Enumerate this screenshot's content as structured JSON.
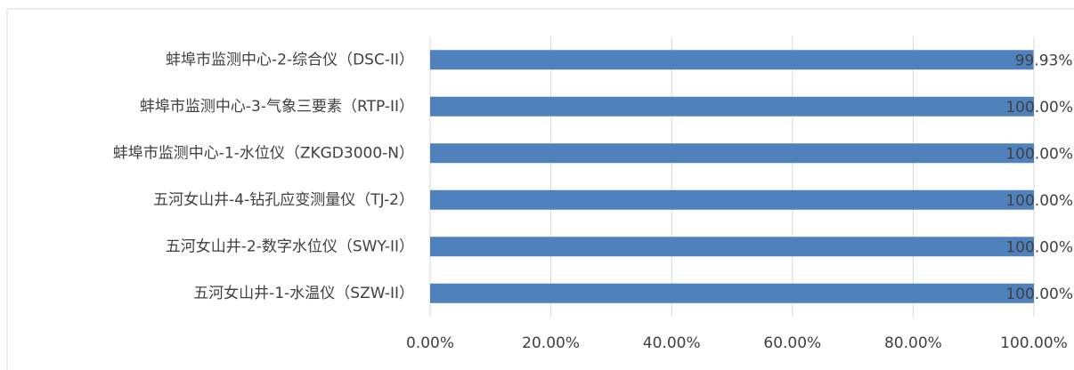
{
  "chart_data": {
    "type": "barh",
    "categories": [
      "蚌埠市监测中心-2-综合仪（DSC-II）",
      "蚌埠市监测中心-3-气象三要素（RTP-II）",
      "蚌埠市监测中心-1-水位仪（ZKGD3000-N）",
      "五河女山井-4-钻孔应变测量仪（TJ-2）",
      "五河女山井-2-数字水位仪（SWY-II）",
      "五河女山井-1-水温仪（SZW-II）"
    ],
    "values": [
      99.93,
      100,
      100,
      100,
      100,
      100
    ],
    "value_labels": [
      "99.93%",
      "100.00%",
      "100.00%",
      "100.00%",
      "100.00%",
      "100.00%"
    ],
    "color": "#4f81bd",
    "xlim": [
      0,
      100
    ],
    "xticks": [
      {
        "value": 0,
        "label": "0.00%"
      },
      {
        "value": 20,
        "label": "20.00%"
      },
      {
        "value": 40,
        "label": "40.00%"
      },
      {
        "value": 60,
        "label": "60.00%"
      },
      {
        "value": 80,
        "label": "80.00%"
      },
      {
        "value": 100,
        "label": "100.00%"
      }
    ],
    "grid": true
  }
}
